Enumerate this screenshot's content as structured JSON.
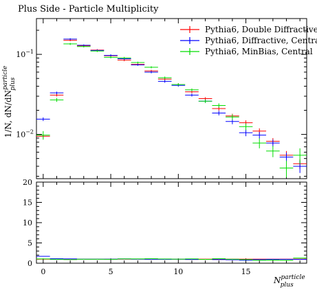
{
  "chart_data": {
    "type": "scatter",
    "title": "Plus Side - Particle Multiplicity",
    "ylabel": "1/N, dN/dN",
    "ylabel_sup": "particle",
    "ylabel_sub": "plus",
    "xlabel": "N",
    "xlabel_sup": "particle",
    "xlabel_sub": "plus",
    "y_scale": "log",
    "ylim": [
      0.0028,
      0.28
    ],
    "xlim": [
      -0.5,
      19.5
    ],
    "x_ticks": [
      0,
      5,
      10,
      15
    ],
    "y_ticks_labeled": [
      {
        "value": 0.01,
        "base": "10",
        "exp": "−2"
      },
      {
        "value": 0.1,
        "base": "10",
        "exp": "−1"
      }
    ],
    "ratio_ylim": [
      0,
      20
    ],
    "ratio_y_ticks": [
      0,
      5,
      10,
      15,
      20
    ],
    "legend_position": "top-right",
    "x": [
      0,
      1,
      2,
      3,
      4,
      5,
      6,
      7,
      8,
      9,
      10,
      11,
      12,
      13,
      14,
      15,
      16,
      17,
      18,
      19
    ],
    "series": [
      {
        "name": "Pythia6, Double Diffractive",
        "color": "#ff0000",
        "values": [
          0.0095,
          0.031,
          0.15,
          0.128,
          0.113,
          0.096,
          0.085,
          0.075,
          0.062,
          0.049,
          0.042,
          0.034,
          0.028,
          0.021,
          0.017,
          0.014,
          0.011,
          0.0082,
          0.0055,
          0.0043
        ],
        "yerr": [
          0.0004,
          0.0012,
          0.004,
          0.003,
          0.003,
          0.003,
          0.003,
          0.002,
          0.002,
          0.0018,
          0.0015,
          0.0013,
          0.0012,
          0.0012,
          0.0011,
          0.001,
          0.0009,
          0.0008,
          0.0007,
          0.0006
        ],
        "ratio": [
          1.0,
          1.0,
          1.0,
          1.0,
          1.0,
          1.0,
          1.0,
          1.0,
          1.0,
          1.0,
          1.0,
          1.0,
          1.0,
          1.0,
          1.0,
          1.0,
          1.0,
          1.0,
          1.0,
          1.0
        ]
      },
      {
        "name": "Pythia6, Diffractive, Central",
        "color": "#0000ff",
        "values": [
          0.0155,
          0.033,
          0.155,
          0.13,
          0.112,
          0.097,
          0.088,
          0.074,
          0.06,
          0.046,
          0.041,
          0.031,
          0.026,
          0.0185,
          0.0145,
          0.0105,
          0.0098,
          0.0078,
          0.0052,
          0.004
        ],
        "yerr": [
          0.0008,
          0.0012,
          0.004,
          0.003,
          0.003,
          0.003,
          0.003,
          0.002,
          0.002,
          0.0018,
          0.0015,
          0.0013,
          0.0012,
          0.0012,
          0.0011,
          0.001,
          0.0009,
          0.0008,
          0.0007,
          0.0007
        ],
        "ratio": [
          1.7,
          1.1,
          1.05,
          1.0,
          1.0,
          1.0,
          1.05,
          1.0,
          0.97,
          0.95,
          0.98,
          0.91,
          0.93,
          0.88,
          0.85,
          0.75,
          0.89,
          0.95,
          0.95,
          0.93
        ]
      },
      {
        "name": "Pythia6, MinBias, Central",
        "color": "#00dd00",
        "values": [
          0.0098,
          0.027,
          0.135,
          0.125,
          0.11,
          0.092,
          0.09,
          0.079,
          0.069,
          0.051,
          0.042,
          0.036,
          0.026,
          0.023,
          0.0165,
          0.0125,
          0.0078,
          0.0062,
          0.0038,
          0.0055
        ],
        "yerr": [
          0.0012,
          0.0015,
          0.004,
          0.003,
          0.003,
          0.003,
          0.003,
          0.002,
          0.002,
          0.0018,
          0.0016,
          0.0015,
          0.0013,
          0.0014,
          0.0013,
          0.0012,
          0.0011,
          0.001,
          0.0009,
          0.0012
        ],
        "ratio": [
          1.05,
          0.95,
          0.9,
          0.98,
          0.97,
          0.96,
          1.05,
          1.05,
          1.1,
          1.04,
          1.0,
          1.06,
          0.93,
          1.1,
          0.97,
          0.9,
          0.71,
          0.76,
          0.69,
          1.28
        ]
      }
    ]
  }
}
